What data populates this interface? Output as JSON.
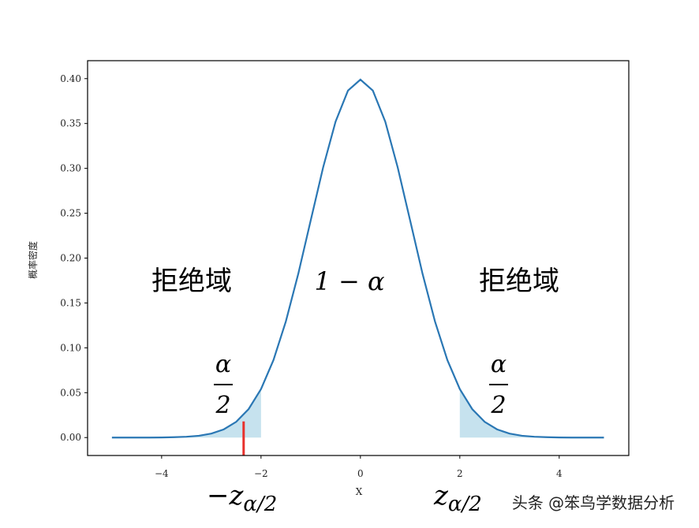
{
  "chart_data": {
    "type": "line",
    "xlabel": "X",
    "ylabel": "概率密度",
    "x": [
      -5,
      -4.75,
      -4.5,
      -4.25,
      -4,
      -3.75,
      -3.5,
      -3.25,
      -3,
      -2.75,
      -2.5,
      -2.25,
      -2,
      -1.75,
      -1.5,
      -1.25,
      -1,
      -0.75,
      -0.5,
      -0.25,
      0,
      0.25,
      0.5,
      0.75,
      1,
      1.25,
      1.5,
      1.75,
      2,
      2.25,
      2.5,
      2.75,
      3,
      3.25,
      3.5,
      3.75,
      4,
      4.25,
      4.5,
      4.75,
      4.9
    ],
    "series": [
      {
        "color": "#2a77b4",
        "values": [
          0,
          0,
          0,
          0,
          0.0001,
          0.0004,
          0.0009,
          0.002,
          0.0044,
          0.0091,
          0.0175,
          0.0317,
          0.054,
          0.0863,
          0.1295,
          0.1826,
          0.242,
          0.3011,
          0.3521,
          0.3867,
          0.3989,
          0.3867,
          0.3521,
          0.3011,
          0.242,
          0.1826,
          0.1295,
          0.0863,
          0.054,
          0.0317,
          0.0175,
          0.0091,
          0.0044,
          0.002,
          0.0009,
          0.0004,
          0.0001,
          0,
          0,
          0,
          0
        ]
      }
    ],
    "shade": [
      {
        "from": -5,
        "to": -2
      },
      {
        "from": 2,
        "to": 4.9
      }
    ],
    "shade_color": "#c6e2ee",
    "marker": {
      "x": -2.35,
      "ymin": -0.02,
      "ymax": 0.018,
      "color": "#e8302c"
    },
    "xlim": [
      -5.49,
      5.4
    ],
    "ylim": [
      -0.02,
      0.42
    ],
    "xticks": [
      {
        "value": -4,
        "label": "−4"
      },
      {
        "value": -2,
        "label": "−2"
      },
      0,
      2,
      4
    ],
    "yticks": [
      {
        "value": 0,
        "label": "0.00"
      },
      0.05,
      {
        "value": 0.1,
        "label": "0.10"
      },
      0.15,
      {
        "value": 0.2,
        "label": "0.20"
      },
      0.25,
      {
        "value": 0.3,
        "label": "0.30"
      },
      0.35,
      {
        "value": 0.4,
        "label": "0.40"
      }
    ],
    "region_labels": [
      "拒绝域",
      "1 − α",
      "拒绝域"
    ],
    "tail_labels": [
      {
        "numerator": "α",
        "denominator": "2"
      },
      {
        "numerator": "α",
        "denominator": "2"
      }
    ],
    "critical_labels": [
      {
        "text": "−z",
        "subscript": "α/2"
      },
      {
        "text": "z",
        "subscript": "α/2"
      }
    ],
    "watermark": "头条 @笨鸟学数据分析"
  }
}
